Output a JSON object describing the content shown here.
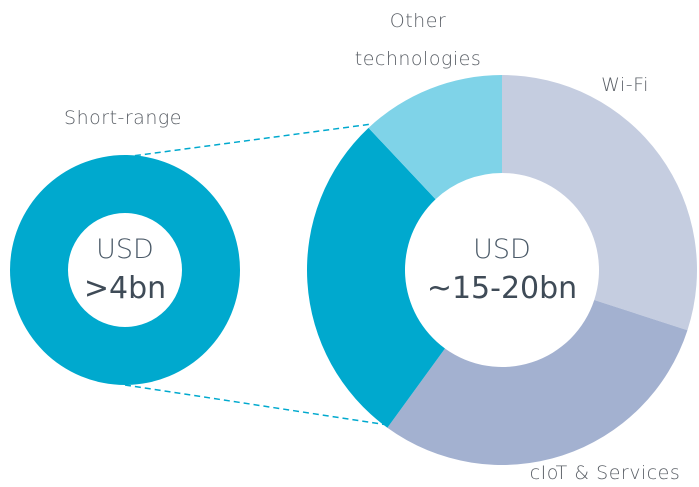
{
  "chart_data": [
    {
      "type": "donut",
      "categories": [
        "Short-range"
      ],
      "values": [
        100
      ],
      "colors": [
        "#00a9ce"
      ],
      "center_label": "USD",
      "center_value": ">4bn"
    },
    {
      "type": "donut",
      "categories": [
        "Wi-Fi",
        "cIoT & Services",
        null,
        "Other technologies"
      ],
      "values": [
        30,
        30,
        28,
        12
      ],
      "colors": [
        "#c5cde0",
        "#a3b1d0",
        "#00a9ce",
        "#7fd3e8"
      ],
      "center_label": "USD",
      "center_value": "~15-20bn"
    }
  ]
}
